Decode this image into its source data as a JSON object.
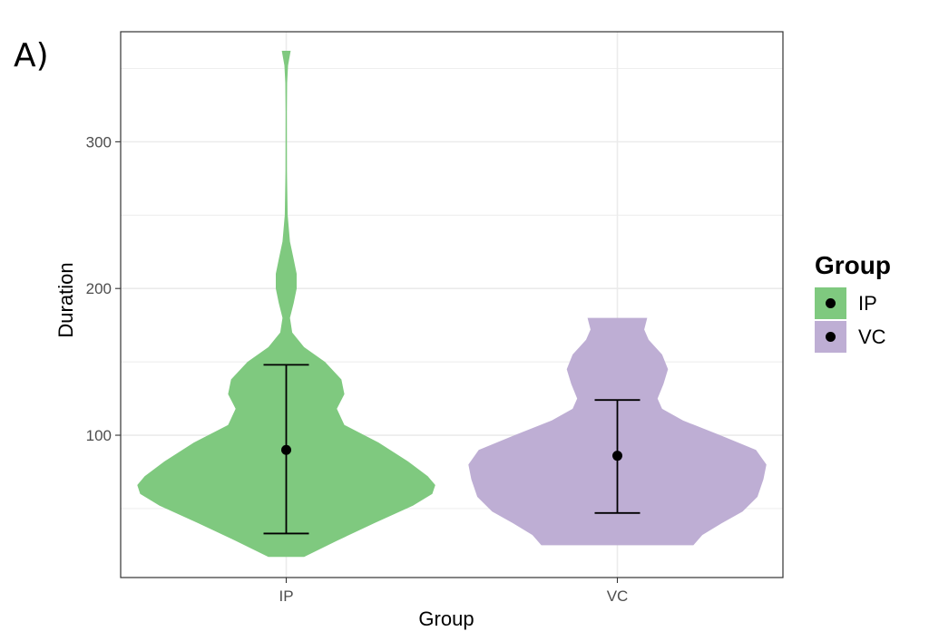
{
  "panel_tag": "A)",
  "chart_data": {
    "type": "violin",
    "xlabel": "Group",
    "ylabel": "Duration",
    "categories": [
      "IP",
      "VC"
    ],
    "ylim": [
      3,
      375
    ],
    "yticks": [
      100,
      200,
      300
    ],
    "grid": true,
    "legend": {
      "title": "Group",
      "position": "right",
      "entries": [
        {
          "label": "IP",
          "color": "#7fc97f"
        },
        {
          "label": "VC",
          "color": "#beaed4"
        }
      ]
    },
    "series": [
      {
        "name": "IP",
        "color": "#7fc97f",
        "mean": 90,
        "error_low": 33,
        "error_high": 148,
        "profile": [
          [
            17,
            0.12
          ],
          [
            28,
            0.34
          ],
          [
            40,
            0.59
          ],
          [
            52,
            0.85
          ],
          [
            60,
            0.98
          ],
          [
            66,
            1.0
          ],
          [
            72,
            0.95
          ],
          [
            82,
            0.82
          ],
          [
            95,
            0.62
          ],
          [
            107,
            0.39
          ],
          [
            118,
            0.34
          ],
          [
            128,
            0.39
          ],
          [
            138,
            0.37
          ],
          [
            150,
            0.26
          ],
          [
            160,
            0.12
          ],
          [
            170,
            0.04
          ],
          [
            180,
            0.025
          ],
          [
            190,
            0.05
          ],
          [
            200,
            0.07
          ],
          [
            210,
            0.07
          ],
          [
            220,
            0.05
          ],
          [
            232,
            0.025
          ],
          [
            250,
            0.01
          ],
          [
            280,
            0.005
          ],
          [
            320,
            0.004
          ],
          [
            340,
            0.006
          ],
          [
            352,
            0.012
          ],
          [
            362,
            0.03
          ]
        ]
      },
      {
        "name": "VC",
        "color": "#beaed4",
        "mean": 86,
        "error_low": 47,
        "error_high": 124,
        "profile": [
          [
            25,
            0.51
          ],
          [
            32,
            0.57
          ],
          [
            40,
            0.7
          ],
          [
            48,
            0.84
          ],
          [
            58,
            0.94
          ],
          [
            70,
            0.98
          ],
          [
            80,
            1.0
          ],
          [
            90,
            0.93
          ],
          [
            100,
            0.69
          ],
          [
            110,
            0.44
          ],
          [
            118,
            0.3
          ],
          [
            125,
            0.27
          ],
          [
            135,
            0.31
          ],
          [
            145,
            0.34
          ],
          [
            155,
            0.3
          ],
          [
            165,
            0.21
          ],
          [
            172,
            0.18
          ],
          [
            180,
            0.2
          ]
        ]
      }
    ]
  }
}
